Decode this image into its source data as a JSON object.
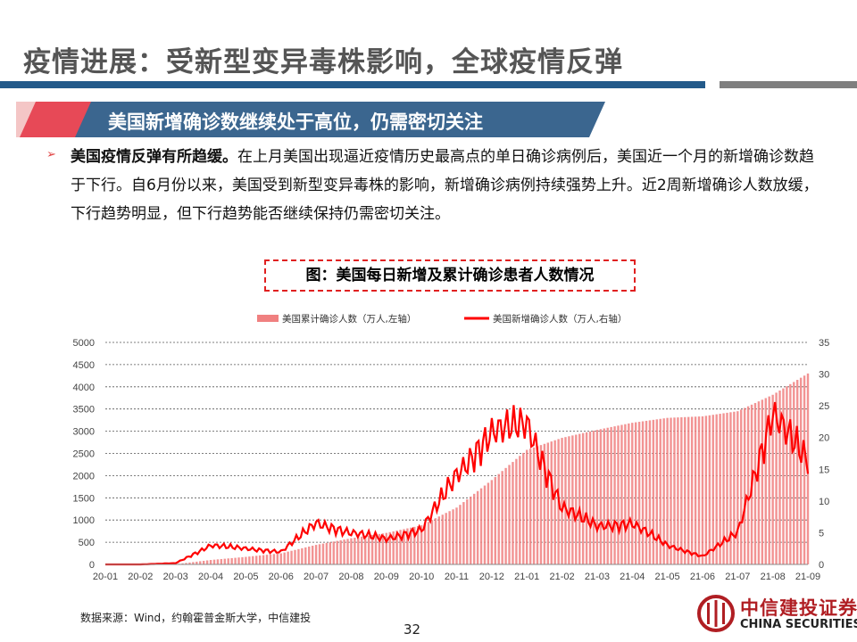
{
  "header": {
    "title": "疫情进展：受新型变异毒株影响，全球疫情反弹"
  },
  "banner": {
    "text": "美国新增确诊数继续处于高位，仍需密切关注"
  },
  "body": {
    "bullet_icon": "arrow-right-icon",
    "lead": "美国疫情反弹有所趋缓。",
    "text": "在上月美国出现逼近疫情历史最高点的单日确诊病例后，美国近一个月的新增确诊数趋于下行。自6月份以来，美国受到新型变异毒株的影响，新增确诊病例持续强势上升。近2周新增确诊人数放缓，下行趋势明显，但下行趋势能否继续保持仍需密切关注。"
  },
  "figure": {
    "caption": "图：美国每日新增及累计确诊患者人数情况",
    "source": "数据来源：Wind，约翰霍普金斯大学，中信建投"
  },
  "chart_data": {
    "type": "bar+line",
    "categories": [
      "20-01",
      "20-02",
      "20-03",
      "20-04",
      "20-05",
      "20-06",
      "20-07",
      "20-08",
      "20-09",
      "20-10",
      "20-11",
      "20-12",
      "21-01",
      "21-02",
      "21-03",
      "21-04",
      "21-05",
      "21-06",
      "21-07",
      "21-08",
      "21-09"
    ],
    "series": [
      {
        "name": "美国累计确诊人数（万人,左轴）",
        "kind": "bar",
        "axis": "left",
        "color": "#f08080",
        "values": [
          0,
          0,
          5,
          100,
          170,
          250,
          440,
          590,
          710,
          880,
          1280,
          1900,
          2580,
          2850,
          3030,
          3190,
          3300,
          3335,
          3450,
          3820,
          4300
        ]
      },
      {
        "name": "美国新增确诊人数（万人,右轴）",
        "kind": "line",
        "axis": "right",
        "color": "#ff0000",
        "values": [
          0,
          0,
          0.2,
          3,
          2.5,
          2,
          6.5,
          5,
          4,
          5.5,
          14,
          21,
          22,
          9,
          6,
          6.5,
          3,
          1.3,
          5,
          24,
          16
        ]
      }
    ],
    "y_left": {
      "min": 0,
      "max": 5000,
      "ticks": [
        0,
        500,
        1000,
        1500,
        2000,
        2500,
        3000,
        3500,
        4000,
        4500,
        5000
      ]
    },
    "y_right": {
      "min": 0,
      "max": 35,
      "ticks": [
        0,
        5,
        10,
        15,
        20,
        25,
        30,
        35
      ]
    },
    "legend_position": "top",
    "grid": "horizontal-dashed"
  },
  "page": {
    "number": "32"
  },
  "logo": {
    "cn": "中信建投证券",
    "en": "CHINA SECURITIES"
  }
}
